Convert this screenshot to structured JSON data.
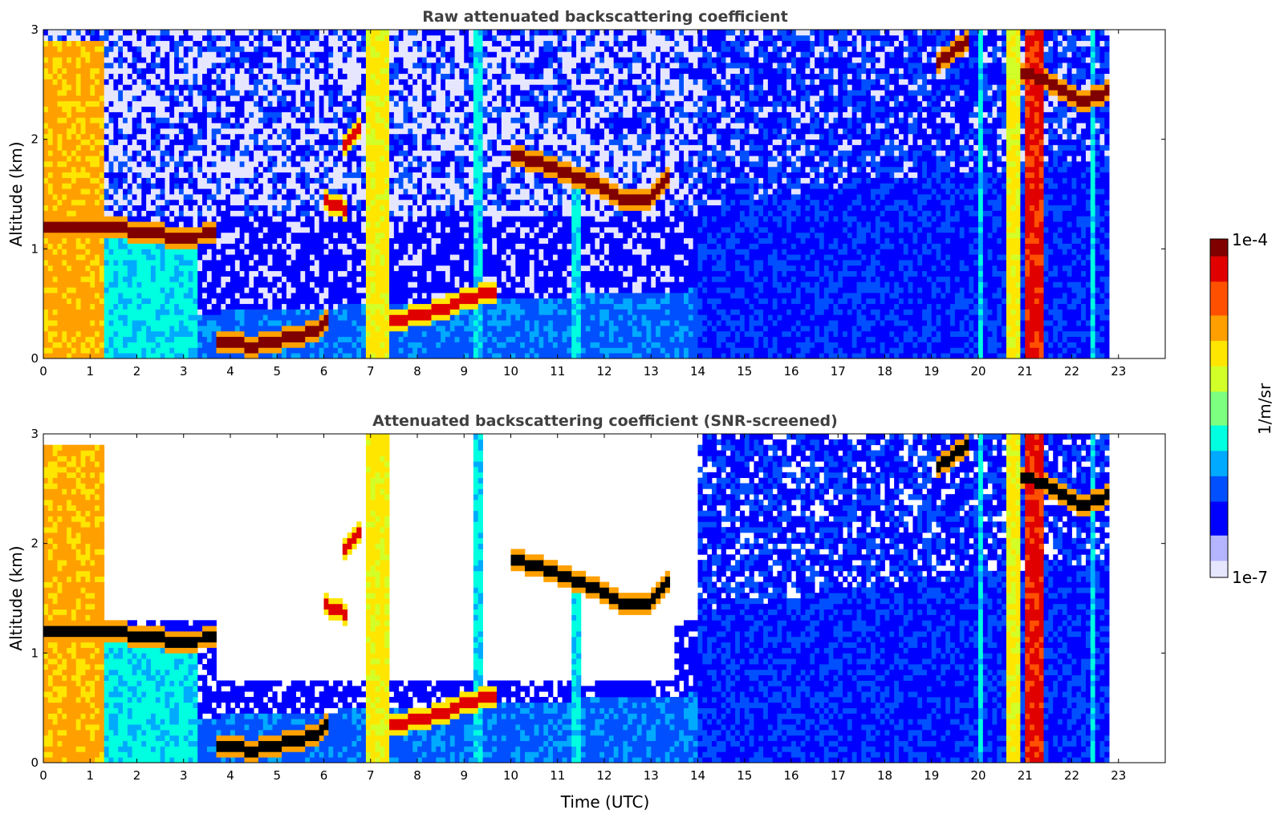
{
  "colors": {
    "jet": [
      "#e6e6ff",
      "#b4b4ff",
      "#0000ff",
      "#0050ff",
      "#00aaff",
      "#00ffe0",
      "#7dff80",
      "#d2ff28",
      "#ffe600",
      "#ffa000",
      "#ff5000",
      "#e00000",
      "#800000"
    ],
    "frame": "#000000",
    "title": "#404040"
  },
  "chart_data": [
    {
      "type": "heatmap",
      "title": "Raw attenuated backscattering coefficient",
      "xlabel": "",
      "ylabel": "Altitude (km)",
      "xlim": [
        0,
        24
      ],
      "ylim": [
        0,
        3
      ],
      "xticks": [
        "0",
        "1",
        "2",
        "3",
        "4",
        "5",
        "6",
        "7",
        "8",
        "9",
        "10",
        "11",
        "12",
        "13",
        "14",
        "15",
        "16",
        "17",
        "18",
        "19",
        "20",
        "21",
        "22",
        "23"
      ],
      "yticks": [
        "0",
        "1",
        "2",
        "3"
      ],
      "data_extent_hours": 22.8,
      "screened": false,
      "layers": [
        {
          "x": [
            0.0,
            1.2,
            1.5,
            2.3,
            3.0,
            3.7
          ],
          "y": [
            1.18,
            1.18,
            1.2,
            1.14,
            1.1,
            1.15
          ],
          "level": 12
        },
        {
          "x": [
            3.7,
            4.5,
            5.2,
            5.8,
            6.1
          ],
          "y": [
            0.14,
            0.12,
            0.18,
            0.25,
            0.35
          ],
          "level": 12
        },
        {
          "x": [
            7.4,
            8.2,
            8.8,
            9.4,
            9.7
          ],
          "y": [
            0.35,
            0.4,
            0.5,
            0.6,
            0.58
          ],
          "level": 11
        },
        {
          "x": [
            10.0,
            10.5,
            11.0,
            11.5,
            12.0,
            12.5,
            13.0,
            13.4
          ],
          "y": [
            1.85,
            1.8,
            1.72,
            1.65,
            1.55,
            1.42,
            1.48,
            1.7
          ],
          "level": 12
        },
        {
          "x": [
            6.4,
            6.6,
            6.8
          ],
          "y": [
            1.95,
            2.0,
            2.15
          ],
          "level": 11
        },
        {
          "x": [
            6.0,
            6.3,
            6.5
          ],
          "y": [
            1.45,
            1.4,
            1.35
          ],
          "level": 11
        },
        {
          "x": [
            19.1,
            19.5,
            19.8
          ],
          "y": [
            2.7,
            2.8,
            2.95
          ],
          "level": 12
        },
        {
          "x": [
            20.9,
            21.4,
            21.8,
            22.2,
            22.6,
            22.8
          ],
          "y": [
            2.6,
            2.55,
            2.45,
            2.35,
            2.4,
            2.5
          ],
          "level": 12
        }
      ],
      "columns": [
        {
          "x0": 0.05,
          "x1": 1.3,
          "top": 2.9,
          "level": 9
        },
        {
          "x0": 1.3,
          "x1": 3.3,
          "top": 1.1,
          "level": 5
        },
        {
          "x0": 6.9,
          "x1": 7.4,
          "top": 3.0,
          "level": 8
        },
        {
          "x0": 9.2,
          "x1": 9.4,
          "top": 3.0,
          "level": 5
        },
        {
          "x0": 11.3,
          "x1": 11.45,
          "top": 1.6,
          "level": 5
        },
        {
          "x0": 20.0,
          "x1": 20.1,
          "top": 3.0,
          "level": 5
        },
        {
          "x0": 20.6,
          "x1": 20.85,
          "top": 3.0,
          "level": 8
        },
        {
          "x0": 21.0,
          "x1": 21.35,
          "top": 3.0,
          "level": 11
        },
        {
          "x0": 22.4,
          "x1": 22.5,
          "top": 3.0,
          "level": 5
        }
      ]
    },
    {
      "type": "heatmap",
      "title": "Attenuated backscattering coefficient (SNR-screened)",
      "xlabel": "Time (UTC)",
      "ylabel": "Altitude (km)",
      "xlim": [
        0,
        24
      ],
      "ylim": [
        0,
        3
      ],
      "xticks": [
        "0",
        "1",
        "2",
        "3",
        "4",
        "5",
        "6",
        "7",
        "8",
        "9",
        "10",
        "11",
        "12",
        "13",
        "14",
        "15",
        "16",
        "17",
        "18",
        "19",
        "20",
        "21",
        "22",
        "23"
      ],
      "yticks": [
        "0",
        "1",
        "2",
        "3"
      ],
      "data_extent_hours": 22.8,
      "screened": true
    }
  ],
  "colorbar": {
    "max_label": "1e-4",
    "min_label": "1e-7",
    "unit_label": "1/m/sr",
    "vmin": 1e-07,
    "vmax": 0.0001,
    "scale": "log"
  }
}
